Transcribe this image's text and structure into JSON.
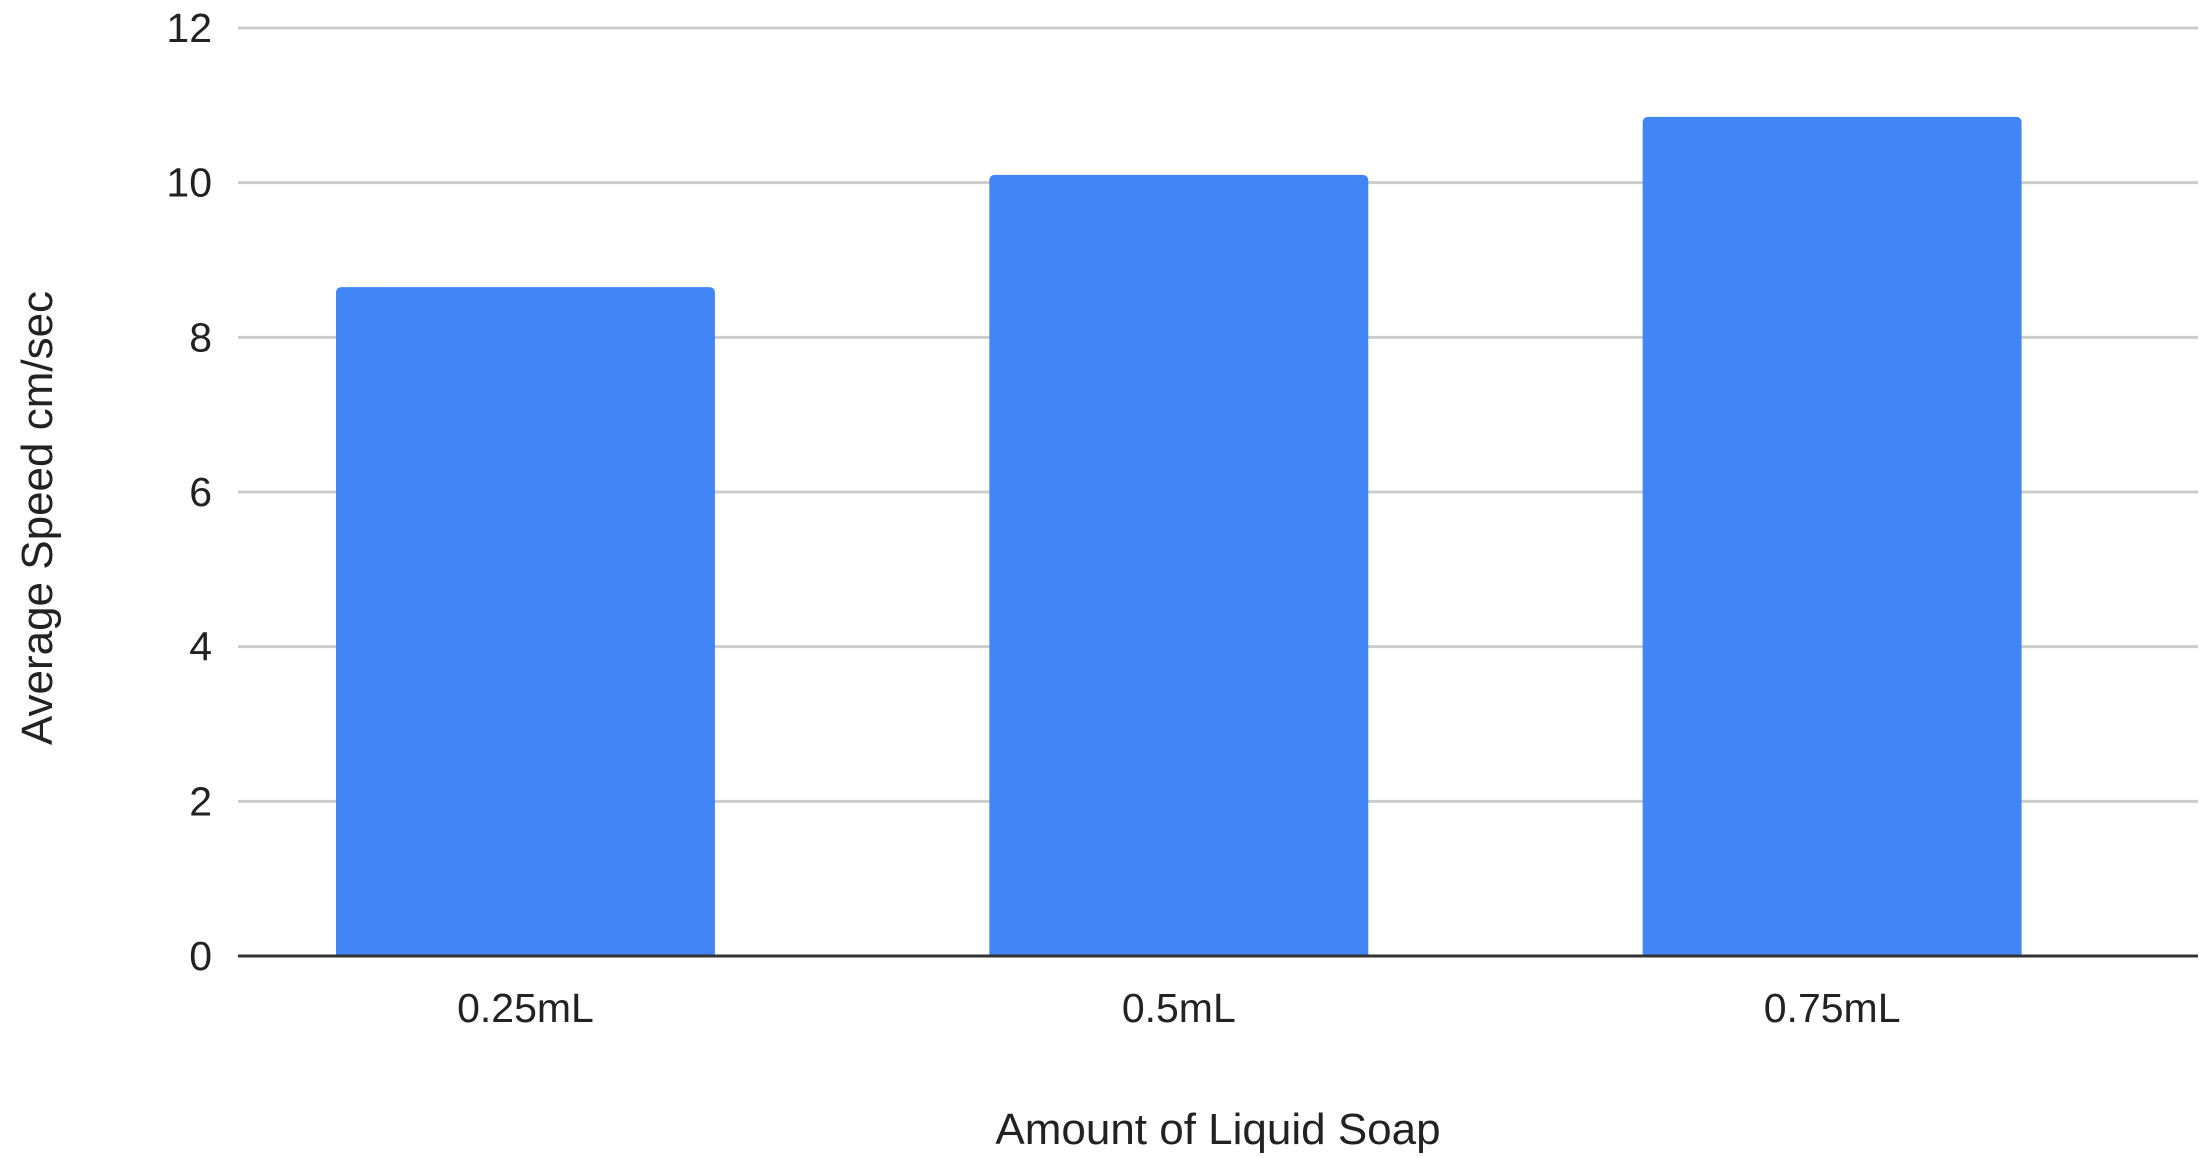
{
  "chart_data": {
    "type": "bar",
    "categories": [
      "0.25mL",
      "0.5mL",
      "0.75mL"
    ],
    "values": [
      8.65,
      10.1,
      10.85
    ],
    "xlabel": "Amount of Liquid Soap",
    "ylabel": "Average Speed cm/sec",
    "ylim": [
      0,
      12
    ],
    "yticks": [
      0,
      2,
      4,
      6,
      8,
      10,
      12
    ],
    "grid": true,
    "legend": "none",
    "bar_color": "#4285f4",
    "grid_color": "#cccccc",
    "axis_color": "#333333"
  }
}
